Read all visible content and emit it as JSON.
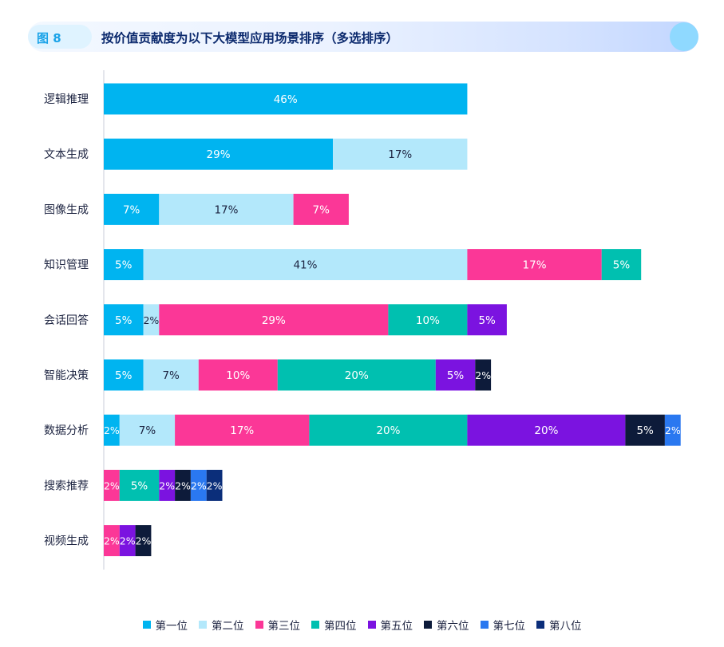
{
  "header": {
    "figure_label": "图 8",
    "title": "按价值贡献度为以下大模型应用场景排序（多选排序）"
  },
  "colors": {
    "accent": "#1aa3e8",
    "title_text": "#0c2a6e",
    "axis_text": "#1c2340"
  },
  "chart_data": {
    "type": "bar",
    "orientation": "horizontal",
    "stacked": true,
    "categories": [
      "逻辑推理",
      "文本生成",
      "图像生成",
      "知识管理",
      "会话回答",
      "智能决策",
      "数据分析",
      "搜索推荐",
      "视频生成"
    ],
    "series": [
      {
        "name": "第一位",
        "color": "#00b4f0",
        "label_color": "#ffffff",
        "values": [
          46,
          29,
          7,
          5,
          5,
          5,
          2,
          0,
          0
        ]
      },
      {
        "name": "第二位",
        "color": "#b3e8fb",
        "label_color": "#1c2340",
        "values": [
          0,
          17,
          17,
          41,
          2,
          7,
          7,
          0,
          0
        ]
      },
      {
        "name": "第三位",
        "color": "#fb3797",
        "label_color": "#ffffff",
        "values": [
          0,
          0,
          7,
          17,
          29,
          10,
          17,
          2,
          2
        ]
      },
      {
        "name": "第四位",
        "color": "#00c0b0",
        "label_color": "#ffffff",
        "values": [
          0,
          0,
          0,
          5,
          10,
          20,
          20,
          5,
          0
        ]
      },
      {
        "name": "第五位",
        "color": "#7b13e0",
        "label_color": "#ffffff",
        "values": [
          0,
          0,
          0,
          0,
          5,
          5,
          20,
          2,
          2
        ]
      },
      {
        "name": "第六位",
        "color": "#0d1b3a",
        "label_color": "#ffffff",
        "values": [
          0,
          0,
          0,
          0,
          0,
          2,
          5,
          2,
          2
        ]
      },
      {
        "name": "第七位",
        "color": "#2a78f0",
        "label_color": "#ffffff",
        "values": [
          0,
          0,
          0,
          0,
          0,
          0,
          2,
          2,
          0
        ]
      },
      {
        "name": "第八位",
        "color": "#0b2e7a",
        "label_color": "#ffffff",
        "values": [
          0,
          0,
          0,
          0,
          0,
          0,
          0,
          2,
          0
        ]
      }
    ],
    "value_suffix": "%",
    "legend_position": "bottom",
    "grid": false
  }
}
